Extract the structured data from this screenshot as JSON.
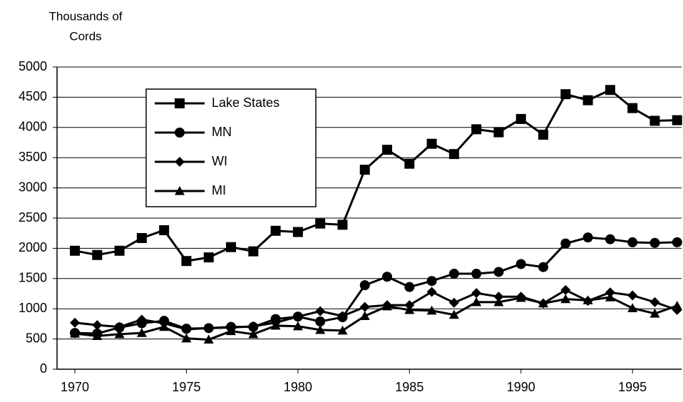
{
  "chart_data": {
    "type": "line",
    "y_label": [
      "Thousands of",
      "Cords"
    ],
    "x": [
      1970,
      1971,
      1972,
      1973,
      1974,
      1975,
      1976,
      1977,
      1978,
      1979,
      1980,
      1981,
      1982,
      1983,
      1984,
      1985,
      1986,
      1987,
      1988,
      1989,
      1990,
      1991,
      1992,
      1993,
      1994,
      1995,
      1996,
      1997
    ],
    "series": [
      {
        "name": "Lake States",
        "color": "#000000",
        "marker": "square",
        "values": [
          1960,
          1890,
          1960,
          2170,
          2300,
          1790,
          1850,
          2020,
          1950,
          2290,
          2270,
          2410,
          2390,
          3300,
          3630,
          3400,
          3730,
          3560,
          3970,
          3920,
          4140,
          3880,
          4550,
          4450,
          4620,
          4320,
          4110,
          4120
        ]
      },
      {
        "name": "MN",
        "color": "#000000",
        "marker": "circle",
        "values": [
          600,
          590,
          690,
          760,
          800,
          670,
          680,
          700,
          700,
          830,
          870,
          790,
          860,
          1390,
          1530,
          1360,
          1460,
          1580,
          1580,
          1610,
          1740,
          1690,
          2080,
          2180,
          2150,
          2100,
          2090,
          2100
        ]
      },
      {
        "name": "WI",
        "color": "#000000",
        "marker": "diamond",
        "values": [
          770,
          730,
          700,
          820,
          760,
          660,
          680,
          690,
          710,
          770,
          870,
          960,
          880,
          1030,
          1060,
          1060,
          1280,
          1100,
          1260,
          1200,
          1200,
          1090,
          1310,
          1130,
          1270,
          1220,
          1110,
          980
        ]
      },
      {
        "name": "MI",
        "color": "#000000",
        "marker": "triangle",
        "values": [
          590,
          550,
          580,
          600,
          700,
          510,
          490,
          630,
          580,
          720,
          710,
          650,
          640,
          880,
          1040,
          980,
          970,
          900,
          1110,
          1110,
          1180,
          1090,
          1160,
          1140,
          1190,
          1010,
          920,
          1050
        ]
      }
    ],
    "xlim": [
      1969.2,
      1997.2
    ],
    "xticks": [
      1970,
      1975,
      1980,
      1985,
      1990,
      1995
    ],
    "ylim": [
      0,
      5000
    ],
    "yticks": [
      0,
      500,
      1000,
      1500,
      2000,
      2500,
      3000,
      3500,
      4000,
      4500,
      5000
    ],
    "grid": true,
    "legend": "upper left"
  }
}
